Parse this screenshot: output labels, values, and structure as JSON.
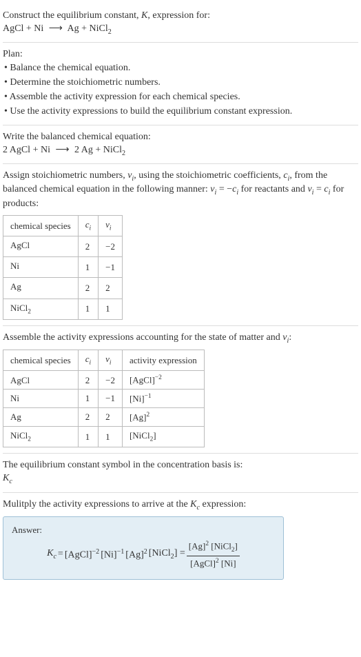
{
  "heading": {
    "line1": "Construct the equilibrium constant, ",
    "k": "K",
    "line1b": ", expression for:",
    "eq_lhs": "AgCl + Ni",
    "arrow": "⟶",
    "eq_rhs_a": "Ag + NiCl",
    "eq_rhs_sub": "2"
  },
  "plan": {
    "title": "Plan:",
    "items": [
      "• Balance the chemical equation.",
      "• Determine the stoichiometric numbers.",
      "• Assemble the activity expression for each chemical species.",
      "• Use the activity expressions to build the equilibrium constant expression."
    ]
  },
  "balanced": {
    "title": "Write the balanced chemical equation:",
    "lhs": "2 AgCl + Ni",
    "arrow": "⟶",
    "rhs_a": "2 Ag + NiCl",
    "rhs_sub": "2"
  },
  "stoich": {
    "intro_a": "Assign stoichiometric numbers, ",
    "nu": "ν",
    "sub_i": "i",
    "intro_b": ", using the stoichiometric coefficients, ",
    "c": "c",
    "intro_c": ", from the balanced chemical equation in the following manner: ",
    "rel1_a": "ν",
    "rel1_b": " = −",
    "rel1_c": "c",
    "rel1_d": " for reactants and ",
    "rel2_a": "ν",
    "rel2_b": " = ",
    "rel2_c": "c",
    "rel2_d": " for products:",
    "cols": {
      "species": "chemical species",
      "ci": "c",
      "nui": "ν"
    },
    "rows": [
      {
        "sp": "AgCl",
        "sp_sub": "",
        "ci": "2",
        "nui": "−2"
      },
      {
        "sp": "Ni",
        "sp_sub": "",
        "ci": "1",
        "nui": "−1"
      },
      {
        "sp": "Ag",
        "sp_sub": "",
        "ci": "2",
        "nui": "2"
      },
      {
        "sp": "NiCl",
        "sp_sub": "2",
        "ci": "1",
        "nui": "1"
      }
    ],
    "table_style": {
      "col_widths": [
        "130px",
        "40px",
        "44px"
      ],
      "fontsize": 13
    }
  },
  "activity": {
    "intro_a": "Assemble the activity expressions accounting for the state of matter and ",
    "intro_b": ":",
    "cols": {
      "species": "chemical species",
      "ci": "c",
      "nui": "ν",
      "act": "activity expression"
    },
    "rows": [
      {
        "sp": "AgCl",
        "sp_sub": "",
        "ci": "2",
        "nui": "−2",
        "act_base": "[AgCl]",
        "act_exp": "−2",
        "act_sub": ""
      },
      {
        "sp": "Ni",
        "sp_sub": "",
        "ci": "1",
        "nui": "−1",
        "act_base": "[Ni]",
        "act_exp": "−1",
        "act_sub": ""
      },
      {
        "sp": "Ag",
        "sp_sub": "",
        "ci": "2",
        "nui": "2",
        "act_base": "[Ag]",
        "act_exp": "2",
        "act_sub": ""
      },
      {
        "sp": "NiCl",
        "sp_sub": "2",
        "ci": "1",
        "nui": "1",
        "act_base": "[NiCl",
        "act_exp": "",
        "act_sub": "2",
        "act_close": "]"
      }
    ],
    "table_style": {
      "col_widths": [
        "130px",
        "40px",
        "44px",
        "140px"
      ],
      "fontsize": 13
    }
  },
  "ksymbol": {
    "line1": "The equilibrium constant symbol in the concentration basis is:",
    "k": "K",
    "ksub": "c"
  },
  "multiply": {
    "intro_a": "Mulitply the activity expressions to arrive at the ",
    "k": "K",
    "ksub": "c",
    "intro_b": " expression:"
  },
  "answer": {
    "label": "Answer:",
    "k": "K",
    "ksub": "c",
    "eq": " = ",
    "t1": "[AgCl]",
    "e1": "−2",
    "t2": " [Ni]",
    "e2": "−1",
    "t3": " [Ag]",
    "e3": "2",
    "t4": " [NiCl",
    "t4sub": "2",
    "t4b": "] = ",
    "num_a": "[Ag]",
    "num_exp": "2",
    "num_b": " [NiCl",
    "num_sub": "2",
    "num_c": "]",
    "den_a": "[AgCl]",
    "den_exp": "2",
    "den_b": " [Ni]"
  },
  "colors": {
    "text": "#333333",
    "border": "#dddddd",
    "table_border": "#bbbbbb",
    "answer_bg": "#e3eef5",
    "answer_border": "#9ec0d6"
  }
}
